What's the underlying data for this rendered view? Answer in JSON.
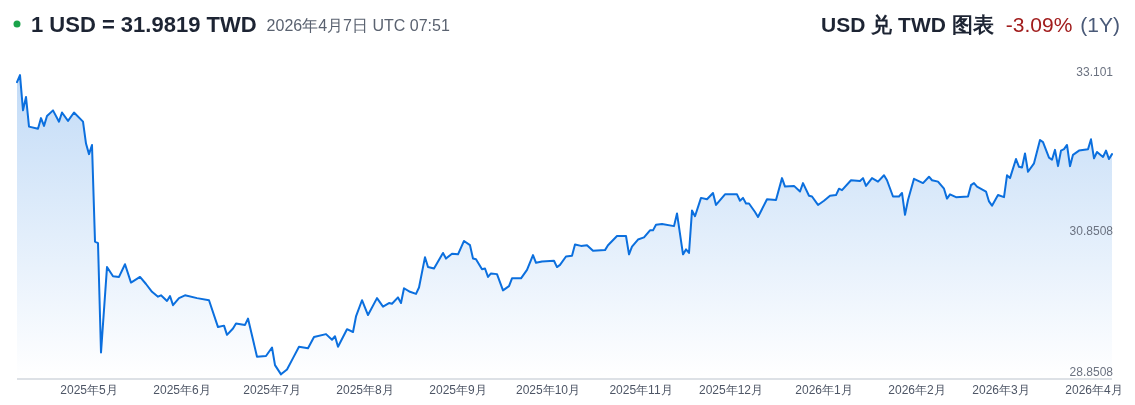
{
  "chart_data": {
    "type": "area",
    "title": "1 USD = 31.9819 TWD",
    "subtitle": "2026年4月7日 UTC 07:51",
    "annotations": [
      "USD 兑 TWD 图表",
      "-3.09%",
      "(1Y)"
    ],
    "color": "#0b6fde",
    "xlim": [
      "2025-04-07",
      "2026-04-07"
    ],
    "ylim": [
      28.8508,
      33.101
    ],
    "yticks": [
      28.8508,
      30.8508,
      33.101
    ],
    "xticks": [
      {
        "value": "2025-05-01",
        "label": "2025年5月"
      },
      {
        "value": "2025-06-01",
        "label": "2025年6月"
      },
      {
        "value": "2025-07-01",
        "label": "2025年7月"
      },
      {
        "value": "2025-08-01",
        "label": "2025年8月"
      },
      {
        "value": "2025-09-01",
        "label": "2025年9月"
      },
      {
        "value": "2025-10-01",
        "label": "2025年10月"
      },
      {
        "value": "2025-11-01",
        "label": "2025年11月"
      },
      {
        "value": "2025-12-01",
        "label": "2025年12月"
      },
      {
        "value": "2026-01-01",
        "label": "2026年1月"
      },
      {
        "value": "2026-02-01",
        "label": "2026年2月"
      },
      {
        "value": "2026-03-01",
        "label": "2026年3月"
      },
      {
        "value": "2026-04-01",
        "label": "2026年4月"
      }
    ],
    "grid": false,
    "x": [
      "2025-04-07",
      "2025-04-08",
      "2025-04-09",
      "2025-04-10",
      "2025-04-11",
      "2025-04-14",
      "2025-04-15",
      "2025-04-16",
      "2025-04-17",
      "2025-04-19",
      "2025-04-21",
      "2025-04-22",
      "2025-04-24",
      "2025-04-26",
      "2025-04-29",
      "2025-04-30",
      "2025-05-01",
      "2025-05-02",
      "2025-05-03",
      "2025-05-04",
      "2025-05-05",
      "2025-05-07",
      "2025-05-09",
      "2025-05-11",
      "2025-05-13",
      "2025-05-15",
      "2025-05-18",
      "2025-05-20",
      "2025-05-22",
      "2025-05-24",
      "2025-05-25",
      "2025-05-27",
      "2025-05-28",
      "2025-05-29",
      "2025-05-31",
      "2025-06-02",
      "2025-06-06",
      "2025-06-10",
      "2025-06-13",
      "2025-06-15",
      "2025-06-16",
      "2025-06-18",
      "2025-06-19",
      "2025-06-22",
      "2025-06-23",
      "2025-06-26",
      "2025-06-29",
      "2025-07-01",
      "2025-07-02",
      "2025-07-04",
      "2025-07-06",
      "2025-07-08",
      "2025-07-10",
      "2025-07-13",
      "2025-07-15",
      "2025-07-19",
      "2025-07-21",
      "2025-07-22",
      "2025-07-23",
      "2025-07-26",
      "2025-07-28",
      "2025-07-29",
      "2025-07-31",
      "2025-08-02",
      "2025-08-05",
      "2025-08-07",
      "2025-08-09",
      "2025-08-10",
      "2025-08-12",
      "2025-08-13",
      "2025-08-14",
      "2025-08-16",
      "2025-08-18",
      "2025-08-19",
      "2025-08-21",
      "2025-08-22",
      "2025-08-24",
      "2025-08-27",
      "2025-08-28",
      "2025-08-30",
      "2025-09-01",
      "2025-09-03",
      "2025-09-05",
      "2025-09-06",
      "2025-09-07",
      "2025-09-09",
      "2025-09-10",
      "2025-09-11",
      "2025-09-12",
      "2025-09-14",
      "2025-09-16",
      "2025-09-18",
      "2025-09-19",
      "2025-09-22",
      "2025-09-24",
      "2025-09-26",
      "2025-09-27",
      "2025-09-29",
      "2025-10-03",
      "2025-10-04",
      "2025-10-05",
      "2025-10-07",
      "2025-10-09",
      "2025-10-10",
      "2025-10-12",
      "2025-10-14",
      "2025-10-16",
      "2025-10-20",
      "2025-10-21",
      "2025-10-24",
      "2025-10-27",
      "2025-10-28",
      "2025-10-29",
      "2025-10-31",
      "2025-11-02",
      "2025-11-04",
      "2025-11-05",
      "2025-11-06",
      "2025-11-08",
      "2025-11-12",
      "2025-11-13",
      "2025-11-15",
      "2025-11-16",
      "2025-11-17",
      "2025-11-18",
      "2025-11-19",
      "2025-11-21",
      "2025-11-23",
      "2025-11-25",
      "2025-11-26",
      "2025-11-29",
      "2025-12-03",
      "2025-12-04",
      "2025-12-05",
      "2025-12-06",
      "2025-12-07",
      "2025-12-09",
      "2025-12-10",
      "2025-12-13",
      "2025-12-16",
      "2025-12-18",
      "2025-12-19",
      "2025-12-22",
      "2025-12-24",
      "2025-12-25",
      "2025-12-27",
      "2025-12-28",
      "2025-12-30",
      "2026-01-01",
      "2026-01-03",
      "2026-01-05",
      "2026-01-06",
      "2026-01-07",
      "2026-01-10",
      "2026-01-13",
      "2026-01-14",
      "2026-01-15",
      "2026-01-17",
      "2026-01-19",
      "2026-01-21",
      "2026-01-22",
      "2026-01-24",
      "2026-01-26",
      "2026-01-27",
      "2026-01-28",
      "2026-01-29",
      "2026-01-31",
      "2026-02-03",
      "2026-02-05",
      "2026-02-06",
      "2026-02-08",
      "2026-02-10",
      "2026-02-11",
      "2026-02-12",
      "2026-02-14",
      "2026-02-18",
      "2026-02-19",
      "2026-02-20",
      "2026-02-21",
      "2026-02-24",
      "2026-02-25",
      "2026-02-26",
      "2026-02-28",
      "2026-03-02",
      "2026-03-03",
      "2026-03-04",
      "2026-03-06",
      "2026-03-07",
      "2026-03-08",
      "2026-03-09",
      "2026-03-10",
      "2026-03-12",
      "2026-03-14",
      "2026-03-15",
      "2026-03-17",
      "2026-03-18",
      "2026-03-19",
      "2026-03-20",
      "2026-03-21",
      "2026-03-22",
      "2026-03-23",
      "2026-03-24",
      "2026-03-25",
      "2026-03-27",
      "2026-03-30",
      "2026-03-31",
      "2026-04-01",
      "2026-04-02",
      "2026-04-04",
      "2026-04-05",
      "2026-04-06",
      "2026-04-07"
    ],
    "values": [
      33.0,
      33.1,
      32.6,
      32.79,
      32.37,
      32.34,
      32.49,
      32.38,
      32.52,
      32.6,
      32.44,
      32.57,
      32.45,
      32.57,
      32.44,
      32.13,
      31.98,
      32.11,
      30.74,
      30.72,
      29.17,
      30.38,
      30.25,
      30.24,
      30.42,
      30.16,
      30.24,
      30.14,
      30.03,
      29.96,
      29.98,
      29.9,
      29.97,
      29.84,
      29.94,
      29.98,
      29.94,
      29.91,
      29.53,
      29.55,
      29.42,
      29.51,
      29.58,
      29.56,
      29.65,
      29.11,
      29.12,
      29.24,
      28.99,
      28.86,
      28.93,
      29.09,
      29.25,
      29.23,
      29.39,
      29.43,
      29.35,
      29.4,
      29.25,
      29.5,
      29.46,
      29.68,
      29.91,
      29.7,
      29.94,
      29.82,
      29.87,
      29.86,
      29.95,
      29.87,
      30.08,
      30.03,
      30.0,
      30.09,
      30.52,
      30.38,
      30.36,
      30.58,
      30.5,
      30.57,
      30.56,
      30.75,
      30.69,
      30.5,
      30.49,
      30.35,
      30.36,
      30.24,
      30.29,
      30.28,
      30.05,
      30.11,
      30.22,
      30.22,
      30.34,
      30.55,
      30.44,
      30.46,
      30.47,
      30.38,
      30.41,
      30.53,
      30.54,
      30.7,
      30.68,
      30.69,
      30.61,
      30.62,
      30.69,
      30.82,
      30.82,
      30.56,
      30.67,
      30.77,
      30.8,
      30.9,
      30.9,
      30.98,
      30.99,
      30.96,
      31.14,
      30.56,
      30.63,
      30.58,
      31.18,
      31.1,
      31.36,
      31.34,
      31.43,
      31.26,
      31.41,
      31.41,
      31.32,
      31.36,
      31.28,
      31.28,
      31.16,
      31.09,
      31.34,
      31.33,
      31.64,
      31.52,
      31.53,
      31.45,
      31.57,
      31.39,
      31.38,
      31.26,
      31.32,
      31.39,
      31.4,
      31.49,
      31.47,
      31.61,
      31.6,
      31.64,
      31.53,
      31.64,
      31.59,
      31.68,
      31.61,
      31.38,
      31.38,
      31.43,
      31.12,
      31.33,
      31.63,
      31.57,
      31.66,
      31.61,
      31.59,
      31.49,
      31.35,
      31.41,
      31.37,
      31.38,
      31.54,
      31.57,
      31.52,
      31.45,
      31.31,
      31.25,
      31.4,
      31.37,
      31.68,
      31.64,
      31.91,
      31.8,
      31.79,
      31.99,
      31.73,
      31.85,
      32.18,
      32.15,
      31.93,
      31.9,
      32.04,
      31.81,
      32.03,
      32.05,
      32.11,
      31.81,
      31.97,
      32.03,
      32.05,
      32.19,
      31.92,
      32.01,
      31.94,
      32.03,
      31.91,
      31.98
    ]
  }
}
